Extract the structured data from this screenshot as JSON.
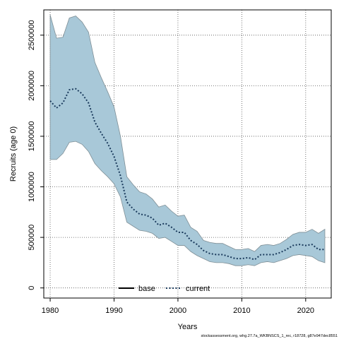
{
  "chart_data": {
    "type": "area",
    "xlabel": "Years",
    "ylabel": "Recruits (age 0)",
    "xlim": [
      1979,
      2024
    ],
    "ylim": [
      -100000,
      2750000
    ],
    "xticks": [
      1980,
      1990,
      2000,
      2010,
      2020
    ],
    "yticks": [
      0,
      500000,
      1000000,
      1500000,
      2000000,
      2500000
    ],
    "grid": true,
    "legend_position": "bottom-center",
    "band": {
      "x": [
        1980,
        1981,
        1982,
        1983,
        1984,
        1985,
        1986,
        1987,
        1988,
        1989,
        1990,
        1991,
        1992,
        1993,
        1994,
        1995,
        1996,
        1997,
        1998,
        1999,
        2000,
        2001,
        2002,
        2003,
        2004,
        2005,
        2006,
        2007,
        2008,
        2009,
        2010,
        2011,
        2012,
        2013,
        2014,
        2015,
        2016,
        2017,
        2018,
        2019,
        2020,
        2021,
        2022,
        2023
      ],
      "upper": [
        2700000,
        2470000,
        2480000,
        2670000,
        2690000,
        2630000,
        2530000,
        2230000,
        2080000,
        1940000,
        1790000,
        1500000,
        1100000,
        1020000,
        950000,
        930000,
        880000,
        800000,
        820000,
        760000,
        710000,
        720000,
        600000,
        560000,
        470000,
        450000,
        440000,
        440000,
        410000,
        380000,
        380000,
        390000,
        360000,
        420000,
        430000,
        420000,
        440000,
        480000,
        530000,
        550000,
        550000,
        580000,
        540000,
        580000
      ],
      "lower": [
        1270000,
        1270000,
        1330000,
        1440000,
        1450000,
        1420000,
        1350000,
        1230000,
        1160000,
        1100000,
        1030000,
        900000,
        650000,
        610000,
        570000,
        560000,
        540000,
        490000,
        500000,
        460000,
        420000,
        420000,
        360000,
        320000,
        290000,
        260000,
        250000,
        250000,
        240000,
        220000,
        220000,
        230000,
        220000,
        250000,
        260000,
        250000,
        270000,
        290000,
        320000,
        330000,
        320000,
        310000,
        270000,
        250000
      ]
    },
    "series": [
      {
        "name": "base",
        "color": "#000000",
        "style": "solid",
        "values": []
      },
      {
        "name": "current",
        "color": "#1a3a5c",
        "style": "dotted",
        "x": [
          1980,
          1981,
          1982,
          1983,
          1984,
          1985,
          1986,
          1987,
          1988,
          1989,
          1990,
          1991,
          1992,
          1993,
          1994,
          1995,
          1996,
          1997,
          1998,
          1999,
          2000,
          2001,
          2002,
          2003,
          2004,
          2005,
          2006,
          2007,
          2008,
          2009,
          2010,
          2011,
          2012,
          2013,
          2014,
          2015,
          2016,
          2017,
          2018,
          2019,
          2020,
          2021,
          2022,
          2023
        ],
        "values": [
          1850000,
          1780000,
          1830000,
          1960000,
          1970000,
          1920000,
          1830000,
          1640000,
          1530000,
          1430000,
          1300000,
          1110000,
          850000,
          780000,
          730000,
          720000,
          690000,
          620000,
          640000,
          600000,
          550000,
          550000,
          470000,
          430000,
          370000,
          340000,
          330000,
          330000,
          310000,
          290000,
          290000,
          300000,
          280000,
          330000,
          330000,
          330000,
          350000,
          380000,
          420000,
          430000,
          420000,
          430000,
          380000,
          380000
        ]
      }
    ],
    "band_color": "#a8c8d8",
    "band_edge_color": "#7f8f96",
    "footnote": "stockassessment.org, whg.27.7a_WKBNSCS_1_rec, r18728, g87e947dec8551"
  }
}
